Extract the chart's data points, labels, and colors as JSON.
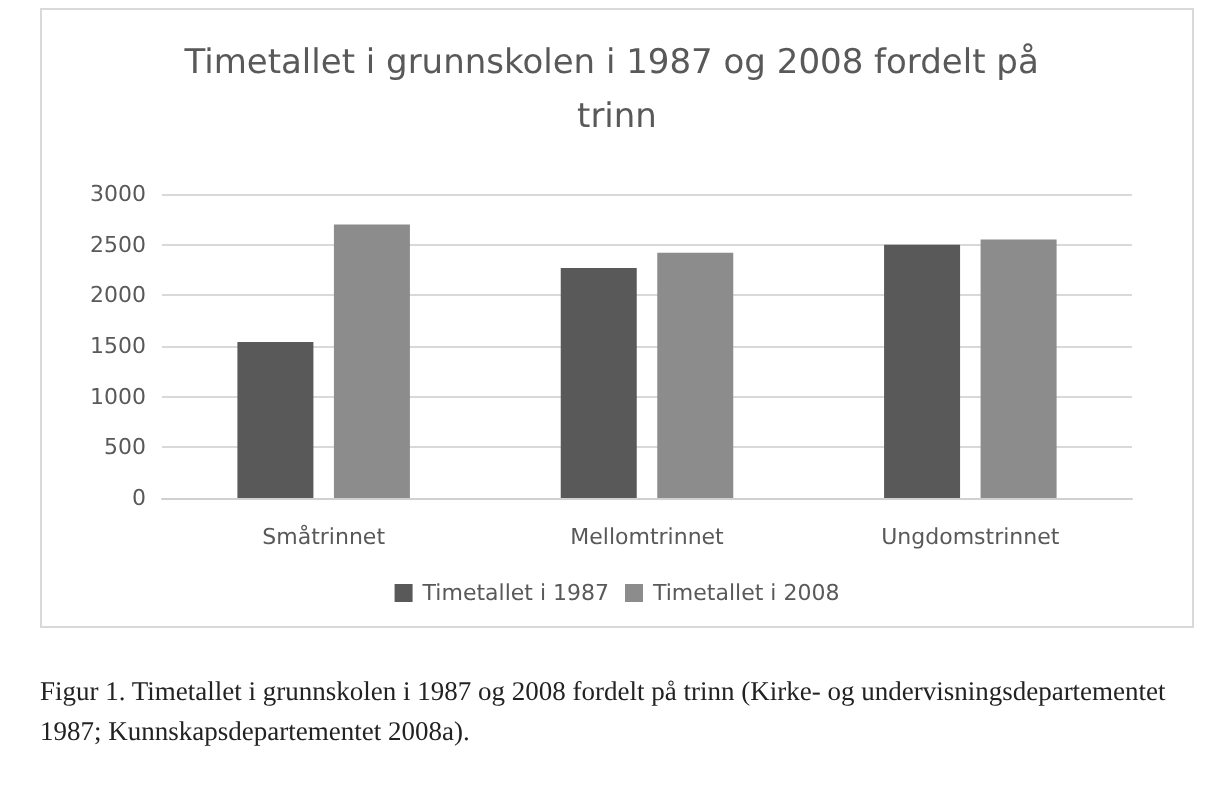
{
  "chart_data": {
    "type": "bar",
    "title": "Timetallet i grunnskolen i 1987 og 2008 fordelt på trinn",
    "categories": [
      "Småtrinnet",
      "Mellomtrinnet",
      "Ungdomstrinnet"
    ],
    "series": [
      {
        "name": "Timetallet i 1987",
        "color": "#595959",
        "values": [
          1540,
          2270,
          2500
        ]
      },
      {
        "name": "Timetallet i 2008",
        "color": "#8c8c8c",
        "values": [
          2700,
          2420,
          2550
        ]
      }
    ],
    "ylim": [
      0,
      3000
    ],
    "yticks": [
      0,
      500,
      1000,
      1500,
      2000,
      2500,
      3000
    ],
    "grid": "y",
    "legend": "bottom",
    "annotations": [
      "Figur 1. Timetallet i grunnskolen i 1987 og 2008 fordelt på trinn (Kirke- og undervisningsdepartementet 1987; Kunnskapsdepartementet 2008a)."
    ]
  }
}
